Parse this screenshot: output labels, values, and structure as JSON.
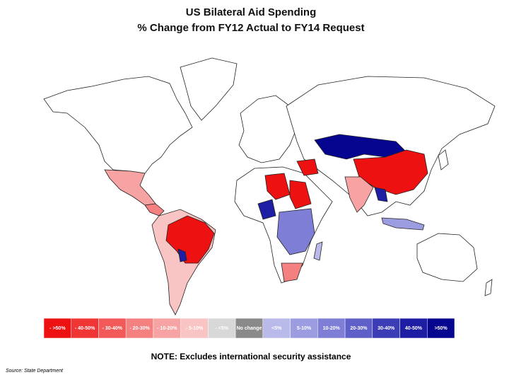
{
  "header": {
    "title": "US Bilateral Aid Spending",
    "subtitle": "% Change from FY12 Actual to FY14 Request"
  },
  "legend": [
    {
      "label": "- >50%",
      "color": "#ee1111"
    },
    {
      "label": "- 40-50%",
      "color": "#f03535"
    },
    {
      "label": "- 30-40%",
      "color": "#f25a5a"
    },
    {
      "label": "- 20-30%",
      "color": "#f48080"
    },
    {
      "label": "- 10-20%",
      "color": "#f7a3a3"
    },
    {
      "label": "- 5-10%",
      "color": "#f9c4c4"
    },
    {
      "label": "- <5%",
      "color": "#d8d8d8"
    },
    {
      "label": "No change",
      "color": "#8a8a8a"
    },
    {
      "label": "<5%",
      "color": "#b9b9ea"
    },
    {
      "label": "5-10%",
      "color": "#9c9ce0"
    },
    {
      "label": "10-20%",
      "color": "#7e7ed6"
    },
    {
      "label": "20-30%",
      "color": "#5f5fc8"
    },
    {
      "label": "30-40%",
      "color": "#3c3cb6"
    },
    {
      "label": "40-50%",
      "color": "#1e1ea5"
    },
    {
      "label": ">50%",
      "color": "#05058f"
    }
  ],
  "note": "NOTE: Excludes international security assistance",
  "source": "Source: State Department"
}
